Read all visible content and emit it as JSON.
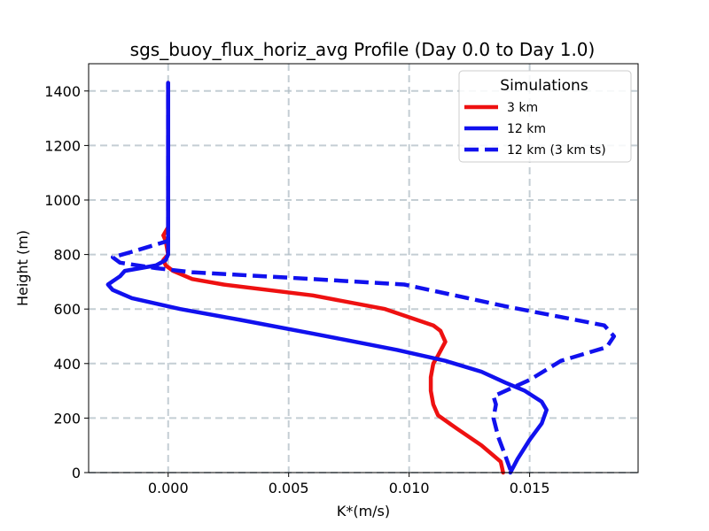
{
  "chart_data": {
    "type": "line",
    "title": "sgs_buoy_flux_horiz_avg Profile (Day 0.0 to Day 1.0)",
    "xlabel": "K*(m/s)",
    "ylabel": "Height (m)",
    "xlim": [
      -0.0033,
      0.0195
    ],
    "ylim": [
      0,
      1500
    ],
    "xticks": [
      0.0,
      0.005,
      0.01,
      0.015
    ],
    "xtick_labels": [
      "0.000",
      "0.005",
      "0.010",
      "0.015"
    ],
    "yticks": [
      0,
      200,
      400,
      600,
      800,
      1000,
      1200,
      1400
    ],
    "ytick_labels": [
      "0",
      "200",
      "400",
      "600",
      "800",
      "1000",
      "1200",
      "1400"
    ],
    "grid": true,
    "legend": {
      "title": "Simulations",
      "placement": "top-right"
    },
    "series": [
      {
        "name": "3 km",
        "color": "#ee1111",
        "dash": "solid",
        "points": [
          [
            0.0139,
            0
          ],
          [
            0.0138,
            40
          ],
          [
            0.013,
            100
          ],
          [
            0.012,
            160
          ],
          [
            0.0112,
            210
          ],
          [
            0.011,
            250
          ],
          [
            0.0109,
            300
          ],
          [
            0.0109,
            350
          ],
          [
            0.011,
            400
          ],
          [
            0.0112,
            430
          ],
          [
            0.0115,
            480
          ],
          [
            0.0113,
            520
          ],
          [
            0.011,
            540
          ],
          [
            0.009,
            600
          ],
          [
            0.006,
            650
          ],
          [
            0.0023,
            690
          ],
          [
            0.001,
            710
          ],
          [
            0.0002,
            740
          ],
          [
            -0.0001,
            760
          ],
          [
            -0.0002,
            780
          ],
          [
            0.0,
            800
          ],
          [
            -0.0001,
            850
          ],
          [
            -0.0002,
            870
          ],
          [
            0.0,
            900
          ],
          [
            0.0,
            1000
          ],
          [
            0.0,
            1200
          ],
          [
            0.0,
            1430
          ]
        ]
      },
      {
        "name": "12 km",
        "color": "#1111ee",
        "dash": "solid",
        "points": [
          [
            0.0142,
            0
          ],
          [
            0.0145,
            50
          ],
          [
            0.015,
            120
          ],
          [
            0.0155,
            180
          ],
          [
            0.0157,
            230
          ],
          [
            0.0155,
            260
          ],
          [
            0.0148,
            300
          ],
          [
            0.014,
            330
          ],
          [
            0.013,
            370
          ],
          [
            0.0115,
            410
          ],
          [
            0.0095,
            450
          ],
          [
            0.006,
            510
          ],
          [
            0.003,
            560
          ],
          [
            0.0005,
            600
          ],
          [
            -0.0015,
            640
          ],
          [
            -0.0023,
            670
          ],
          [
            -0.0025,
            690
          ],
          [
            -0.002,
            720
          ],
          [
            -0.0018,
            740
          ],
          [
            -0.0005,
            760
          ],
          [
            -0.0001,
            780
          ],
          [
            0.0,
            800
          ],
          [
            0.0,
            900
          ],
          [
            0.0,
            1000
          ],
          [
            0.0,
            1200
          ],
          [
            0.0,
            1430
          ]
        ]
      },
      {
        "name": "12 km (3 km ts)",
        "color": "#1111ee",
        "dash": "dashed",
        "points": [
          [
            0.0142,
            10
          ],
          [
            0.014,
            60
          ],
          [
            0.0137,
            130
          ],
          [
            0.0135,
            200
          ],
          [
            0.0136,
            250
          ],
          [
            0.0135,
            280
          ],
          [
            0.015,
            340
          ],
          [
            0.0163,
            410
          ],
          [
            0.0182,
            460
          ],
          [
            0.0185,
            500
          ],
          [
            0.0181,
            540
          ],
          [
            0.014,
            610
          ],
          [
            0.0098,
            690
          ],
          [
            0.006,
            710
          ],
          [
            0.001,
            735
          ],
          [
            -0.0005,
            750
          ],
          [
            -0.002,
            770
          ],
          [
            -0.0023,
            790
          ],
          [
            -0.0015,
            810
          ],
          [
            0.0,
            850
          ],
          [
            0.0,
            900
          ],
          [
            0.0,
            1000
          ],
          [
            0.0,
            1200
          ],
          [
            0.0,
            1430
          ]
        ]
      }
    ]
  }
}
